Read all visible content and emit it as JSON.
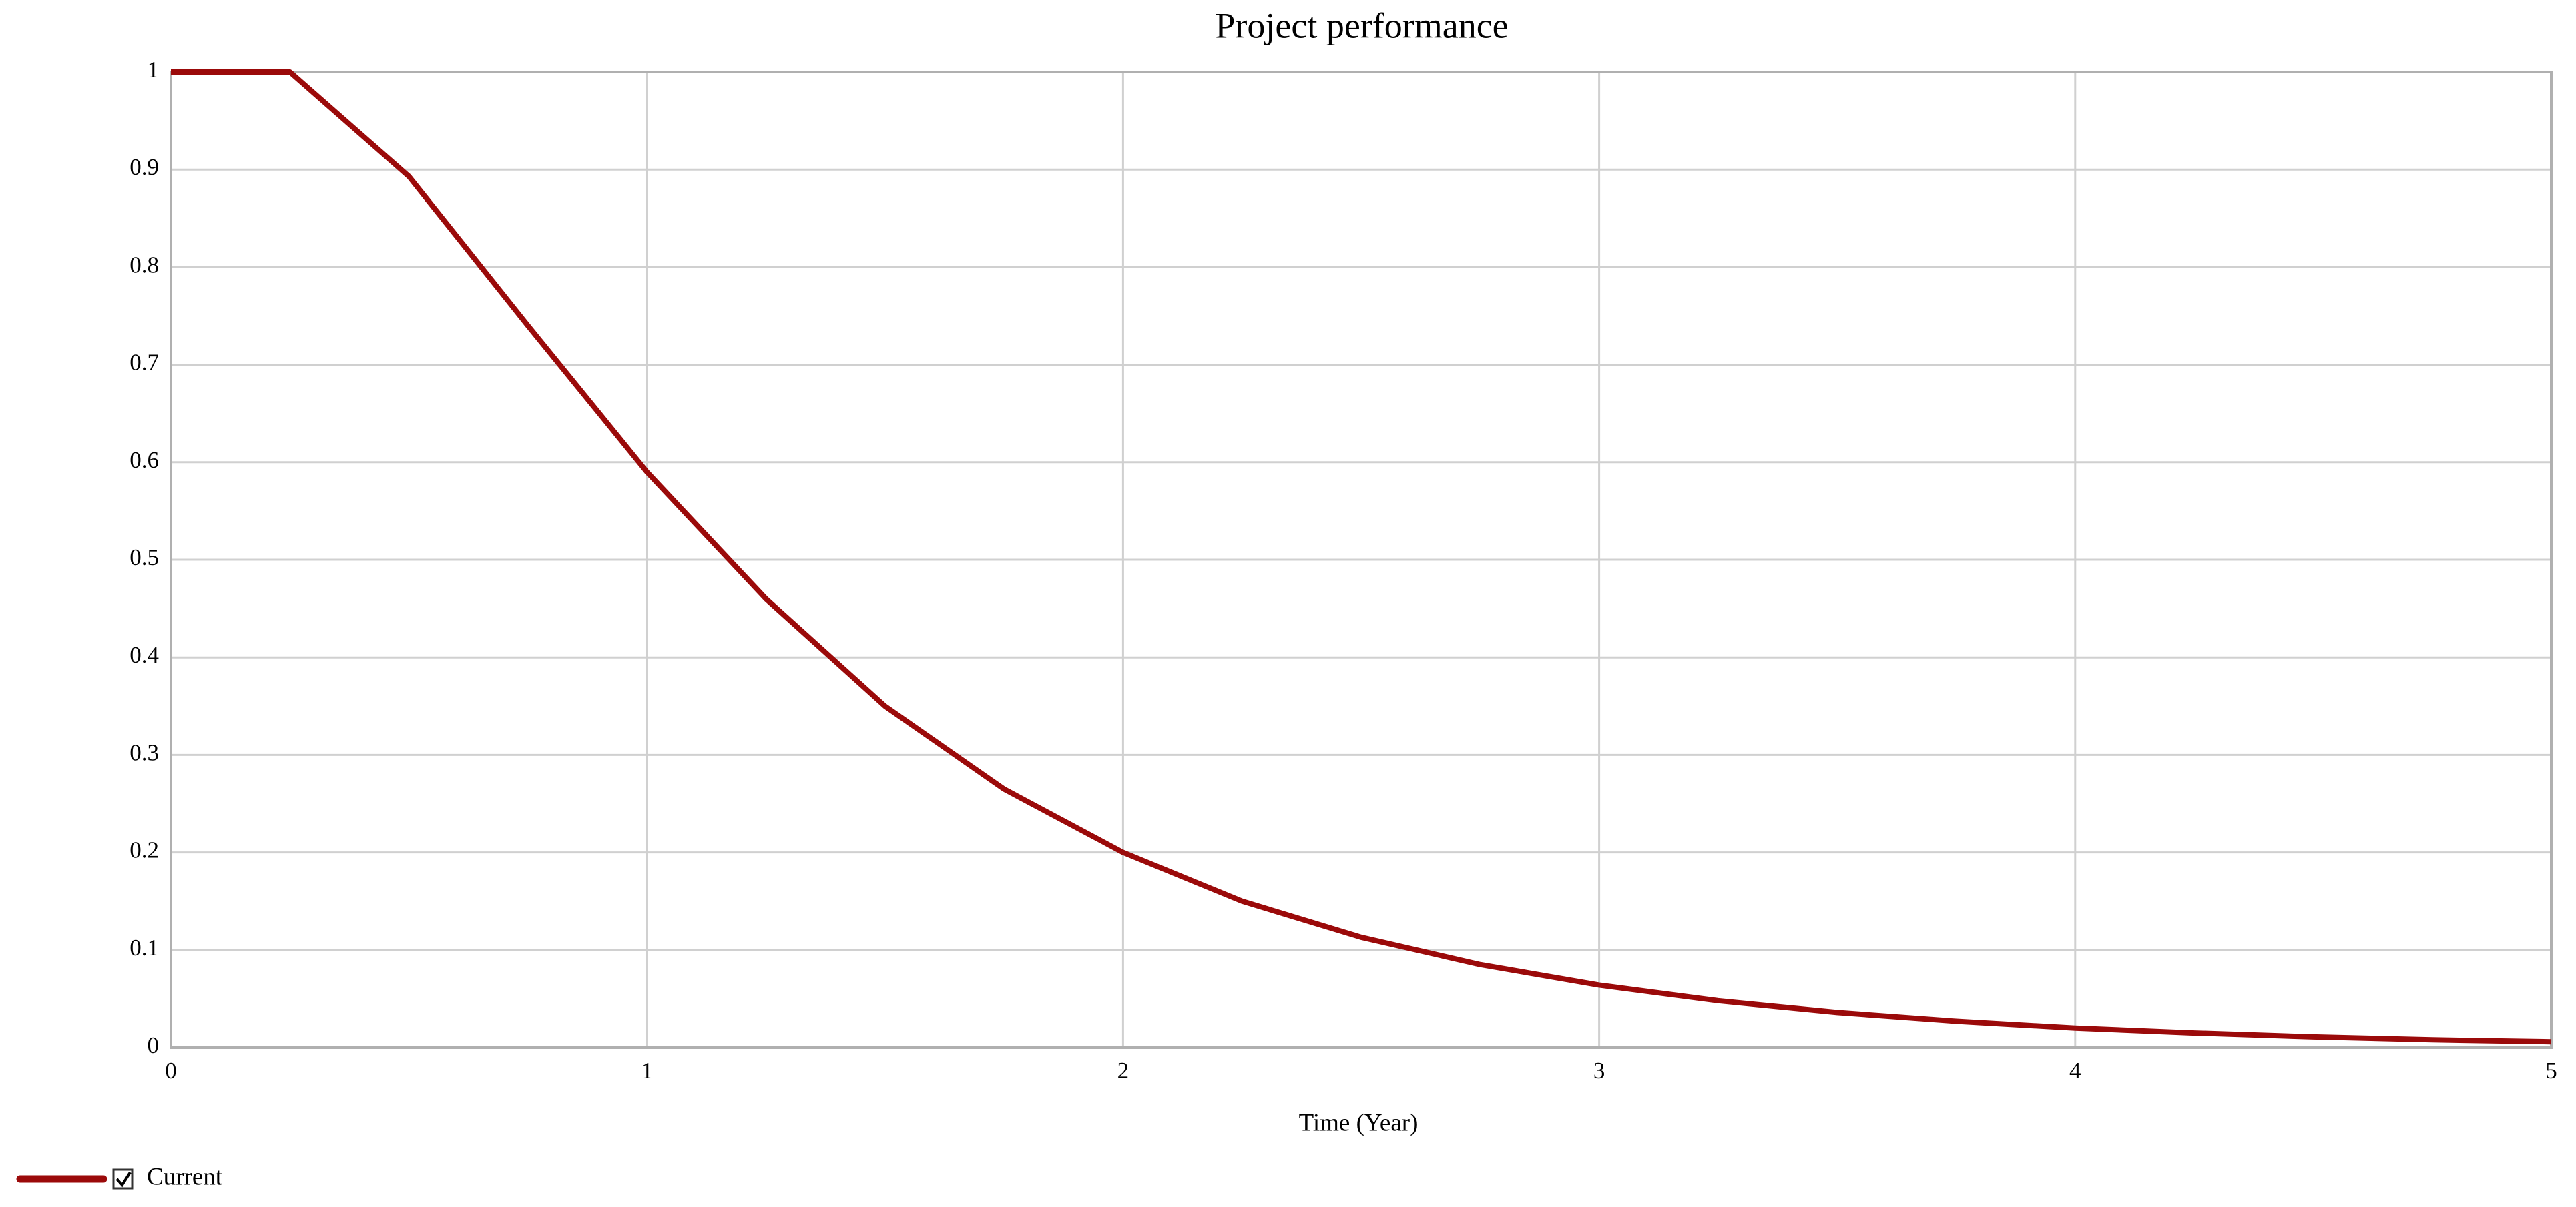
{
  "chart_data": {
    "type": "line",
    "title": "Project performance",
    "x_label": "Time (Year)",
    "x": [
      0,
      0.25,
      0.5,
      0.75,
      1,
      1.25,
      1.5,
      1.75,
      2,
      2.25,
      2.5,
      2.75,
      3,
      3.25,
      3.5,
      3.75,
      4,
      4.25,
      4.5,
      4.75,
      5
    ],
    "series": [
      {
        "name": "Current",
        "color": "#9b0a0a",
        "values": [
          1,
          1,
          0.893,
          0.74,
          0.59,
          0.46,
          0.35,
          0.265,
          0.2,
          0.15,
          0.113,
          0.085,
          0.064,
          0.048,
          0.036,
          0.027,
          0.02,
          0.015,
          0.011,
          0.008,
          0.006
        ]
      }
    ],
    "xlim": [
      0,
      5
    ],
    "xticks": [
      0,
      1,
      2,
      3,
      4,
      5
    ],
    "ylim": [
      0,
      1
    ],
    "yticks": [
      0,
      0.1,
      0.2,
      0.3,
      0.4,
      0.5,
      0.6,
      0.7,
      0.8,
      0.9,
      1
    ],
    "grid": true,
    "legend": "bottom-left"
  }
}
